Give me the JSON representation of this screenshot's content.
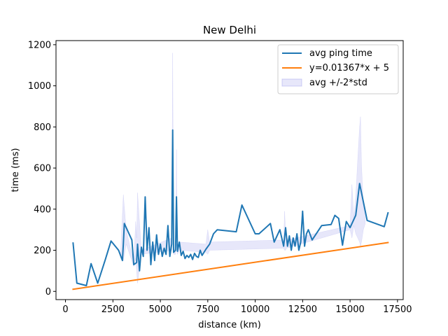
{
  "chart_data": {
    "type": "line",
    "title": "New Delhi",
    "xlabel": "distance (km)",
    "ylabel": "time (ms)",
    "xlim": [
      -500,
      17800
    ],
    "ylim": [
      -40,
      1220
    ],
    "xticks": [
      0,
      2500,
      5000,
      7500,
      10000,
      12500,
      15000,
      17500
    ],
    "yticks": [
      0,
      200,
      400,
      600,
      800,
      1000,
      1200
    ],
    "xtick_labels": [
      "0",
      "2500",
      "5000",
      "7500",
      "10000",
      "12500",
      "15000",
      "17500"
    ],
    "ytick_labels": [
      "0",
      "200",
      "400",
      "600",
      "800",
      "1000",
      "1200"
    ],
    "grid": false,
    "legend_position": "top-right",
    "series": [
      {
        "name": "avg ping time",
        "color": "#1f77b4",
        "x": [
          400,
          600,
          1100,
          1350,
          1700,
          2100,
          2400,
          2800,
          3000,
          3050,
          3100,
          3500,
          3600,
          3750,
          3800,
          3900,
          4000,
          4100,
          4200,
          4300,
          4400,
          4500,
          4600,
          4700,
          4800,
          4900,
          5000,
          5100,
          5200,
          5300,
          5400,
          5500,
          5600,
          5650,
          5700,
          5800,
          5850,
          5900,
          6000,
          6100,
          6200,
          6300,
          6400,
          6500,
          6600,
          6700,
          6800,
          6900,
          7000,
          7100,
          7200,
          7400,
          7600,
          7800,
          8000,
          9000,
          9300,
          10000,
          10200,
          10800,
          11000,
          11300,
          11500,
          11600,
          11700,
          11800,
          11900,
          12000,
          12100,
          12200,
          12300,
          12400,
          12500,
          12600,
          12700,
          12800,
          13000,
          13500,
          14000,
          14200,
          14400,
          14600,
          14800,
          15000,
          15300,
          15500,
          15900,
          16800,
          17000
        ],
        "y": [
          235,
          40,
          28,
          135,
          40,
          155,
          245,
          200,
          150,
          230,
          330,
          250,
          130,
          140,
          230,
          100,
          215,
          170,
          460,
          200,
          310,
          130,
          240,
          150,
          275,
          180,
          230,
          170,
          210,
          180,
          320,
          170,
          230,
          785,
          190,
          200,
          460,
          195,
          240,
          175,
          195,
          160,
          175,
          165,
          180,
          155,
          185,
          170,
          165,
          200,
          175,
          205,
          230,
          280,
          300,
          290,
          420,
          280,
          280,
          330,
          240,
          300,
          220,
          310,
          220,
          270,
          200,
          260,
          220,
          280,
          200,
          240,
          390,
          220,
          280,
          300,
          250,
          320,
          325,
          370,
          355,
          225,
          340,
          310,
          370,
          525,
          345,
          315,
          382
        ]
      },
      {
        "name": "y=0.01367*x + 5",
        "color": "#ff7f0e",
        "x": [
          400,
          17000
        ],
        "y": [
          10.5,
          237.4
        ]
      }
    ],
    "band": {
      "name": "avg +/-2*std",
      "color": "#b0b0f0",
      "x": [
        2900,
        3050,
        3200,
        3600,
        3700,
        3750,
        3800,
        4000,
        5600,
        5650,
        5700,
        5800,
        5850,
        5900,
        6000,
        7400,
        7500,
        7600,
        11500,
        11550,
        11600,
        11650,
        15000,
        15100,
        15200,
        15300,
        15400,
        15500,
        15550,
        15600,
        15700,
        15800
      ],
      "upper": [
        180,
        470,
        300,
        140,
        340,
        260,
        480,
        200,
        260,
        1160,
        200,
        210,
        690,
        200,
        240,
        230,
        300,
        240,
        250,
        390,
        280,
        250,
        320,
        520,
        360,
        460,
        640,
        800,
        850,
        620,
        420,
        360
      ],
      "lower": [
        180,
        150,
        230,
        120,
        160,
        100,
        40,
        180,
        200,
        410,
        180,
        180,
        230,
        180,
        200,
        190,
        180,
        200,
        210,
        200,
        200,
        210,
        300,
        260,
        320,
        280,
        260,
        240,
        220,
        240,
        300,
        330
      ]
    }
  }
}
